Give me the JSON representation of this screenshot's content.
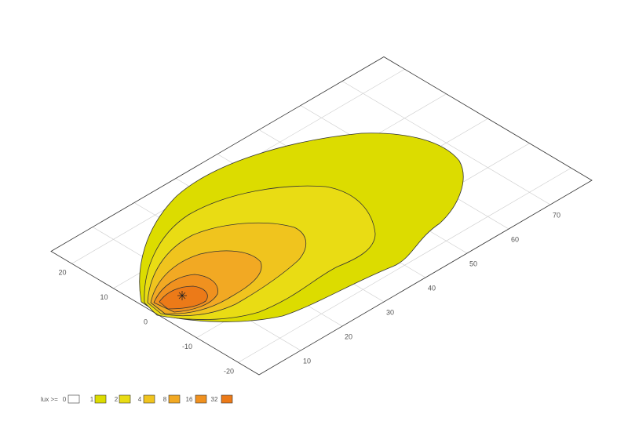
{
  "chart_data": {
    "type": "contour",
    "xlim": [
      0,
      80
    ],
    "ylim": [
      -25,
      25
    ],
    "xticks": [
      10,
      20,
      30,
      40,
      50,
      60,
      70
    ],
    "yticks": [
      -20,
      -10,
      0,
      10,
      20
    ],
    "grid": true,
    "legend_title": "lux >=",
    "levels": [
      0,
      1,
      2,
      4,
      8,
      16,
      32
    ],
    "colors": [
      "#ffffff",
      "#dcdc00",
      "#e9dc14",
      "#f0c41e",
      "#f2a923",
      "#f0911f",
      "#ec7a18"
    ]
  }
}
